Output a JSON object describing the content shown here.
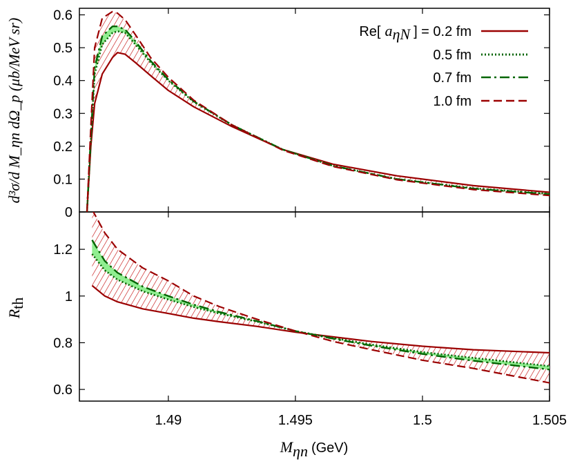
{
  "chart_data": {
    "type": "line",
    "x_axis": {
      "label_main": "M",
      "label_sub": "ηn",
      "label_unit": "(GeV)",
      "range": [
        1.4865,
        1.505
      ],
      "ticks": [
        "1.49",
        "1.495",
        "1.5",
        "1.505"
      ],
      "tick_values": [
        1.49,
        1.495,
        1.5,
        1.505
      ]
    },
    "legend": {
      "placement": "top-right",
      "prefix": "Re[",
      "symbol": "a",
      "symbol_sub": "ηN",
      "suffix": "] = 0.2 fm",
      "entries": [
        "0.5 fm",
        "0.7 fm",
        "1.0 fm"
      ]
    },
    "colors": {
      "dark_red": "#9b0000",
      "dark_green": "#006400",
      "band_green": "#90ee90",
      "hatch_red": "#c00000"
    },
    "panels": [
      {
        "name": "top",
        "ylabel": "d³σ/d M_ηn dΩ_p (μb/MeV sr)",
        "ylim": [
          0,
          0.62
        ],
        "yticks": [
          "0",
          "0.1",
          "0.2",
          "0.3",
          "0.4",
          "0.5",
          "0.6"
        ],
        "ytick_values": [
          0,
          0.1,
          0.2,
          0.3,
          0.4,
          0.5,
          0.6
        ],
        "series": [
          {
            "name": "0.2 fm",
            "style": "solid",
            "color": "#9b0000",
            "x": [
              1.4868,
              1.48695,
              1.4871,
              1.4874,
              1.4878,
              1.488,
              1.4883,
              1.4887,
              1.4893,
              1.49,
              1.491,
              1.4925,
              1.4945,
              1.4965,
              1.499,
              1.502,
              1.505
            ],
            "y": [
              0,
              0.2,
              0.33,
              0.42,
              0.47,
              0.485,
              0.48,
              0.455,
              0.415,
              0.37,
              0.32,
              0.26,
              0.19,
              0.145,
              0.11,
              0.08,
              0.06
            ]
          },
          {
            "name": "0.5 fm",
            "style": "dotted",
            "color": "#006400",
            "x": [
              1.4868,
              1.48695,
              1.4871,
              1.4874,
              1.4878,
              1.488,
              1.4883,
              1.4887,
              1.4893,
              1.49,
              1.491,
              1.4925,
              1.4945,
              1.4965,
              1.499,
              1.502,
              1.505
            ],
            "y": [
              0,
              0.22,
              0.42,
              0.51,
              0.545,
              0.55,
              0.545,
              0.51,
              0.455,
              0.4,
              0.335,
              0.265,
              0.19,
              0.14,
              0.1,
              0.072,
              0.055
            ]
          },
          {
            "name": "0.7 fm",
            "style": "dashdot",
            "color": "#006400",
            "x": [
              1.4868,
              1.48695,
              1.4871,
              1.4874,
              1.4878,
              1.488,
              1.4883,
              1.4887,
              1.4893,
              1.49,
              1.491,
              1.4925,
              1.4945,
              1.4965,
              1.499,
              1.502,
              1.505
            ],
            "y": [
              0,
              0.23,
              0.44,
              0.535,
              0.565,
              0.565,
              0.555,
              0.52,
              0.46,
              0.403,
              0.337,
              0.265,
              0.19,
              0.14,
              0.1,
              0.071,
              0.054
            ]
          },
          {
            "name": "1.0 fm",
            "style": "dashed",
            "color": "#9b0000",
            "x": [
              1.4868,
              1.48695,
              1.4871,
              1.4874,
              1.4878,
              1.488,
              1.4883,
              1.4887,
              1.4893,
              1.49,
              1.491,
              1.4925,
              1.4945,
              1.4965,
              1.499,
              1.502,
              1.505
            ],
            "y": [
              0,
              0.26,
              0.5,
              0.59,
              0.61,
              0.605,
              0.585,
              0.54,
              0.47,
              0.41,
              0.34,
              0.265,
              0.188,
              0.138,
              0.098,
              0.068,
              0.05
            ]
          }
        ]
      },
      {
        "name": "bottom",
        "ylabel": "R_th",
        "ylim": [
          0.55,
          1.36
        ],
        "yticks": [
          "0.6",
          "0.8",
          "1",
          "1.2"
        ],
        "ytick_values": [
          0.6,
          0.8,
          1.0,
          1.2
        ],
        "series": [
          {
            "name": "0.2 fm",
            "style": "solid",
            "color": "#9b0000",
            "x": [
              1.487,
              1.4875,
              1.488,
              1.489,
              1.49,
              1.491,
              1.492,
              1.4935,
              1.495,
              1.4965,
              1.498,
              1.5,
              1.502,
              1.505
            ],
            "y": [
              1.045,
              1.0,
              0.975,
              0.945,
              0.925,
              0.905,
              0.89,
              0.87,
              0.845,
              0.825,
              0.805,
              0.785,
              0.77,
              0.757
            ]
          },
          {
            "name": "0.5 fm",
            "style": "dotted",
            "color": "#006400",
            "x": [
              1.487,
              1.4875,
              1.488,
              1.489,
              1.49,
              1.491,
              1.492,
              1.4935,
              1.495,
              1.4965,
              1.498,
              1.5,
              1.502,
              1.505
            ],
            "y": [
              1.18,
              1.11,
              1.07,
              1.02,
              0.985,
              0.953,
              0.925,
              0.89,
              0.85,
              0.82,
              0.792,
              0.76,
              0.735,
              0.7
            ]
          },
          {
            "name": "0.7 fm",
            "style": "dashdot",
            "color": "#006400",
            "x": [
              1.487,
              1.4875,
              1.488,
              1.489,
              1.49,
              1.491,
              1.492,
              1.4935,
              1.495,
              1.4965,
              1.498,
              1.5,
              1.502,
              1.505
            ],
            "y": [
              1.24,
              1.15,
              1.1,
              1.04,
              1.0,
              0.963,
              0.932,
              0.892,
              0.85,
              0.817,
              0.787,
              0.752,
              0.723,
              0.685
            ]
          },
          {
            "name": "1.0 fm",
            "style": "dashed",
            "color": "#9b0000",
            "x": [
              1.487,
              1.4875,
              1.488,
              1.489,
              1.49,
              1.491,
              1.492,
              1.4935,
              1.495,
              1.4965,
              1.498,
              1.5,
              1.502,
              1.505
            ],
            "y": [
              1.37,
              1.27,
              1.2,
              1.12,
              1.065,
              1.0,
              0.955,
              0.9,
              0.85,
              0.805,
              0.77,
              0.725,
              0.69,
              0.628
            ]
          }
        ]
      }
    ]
  }
}
